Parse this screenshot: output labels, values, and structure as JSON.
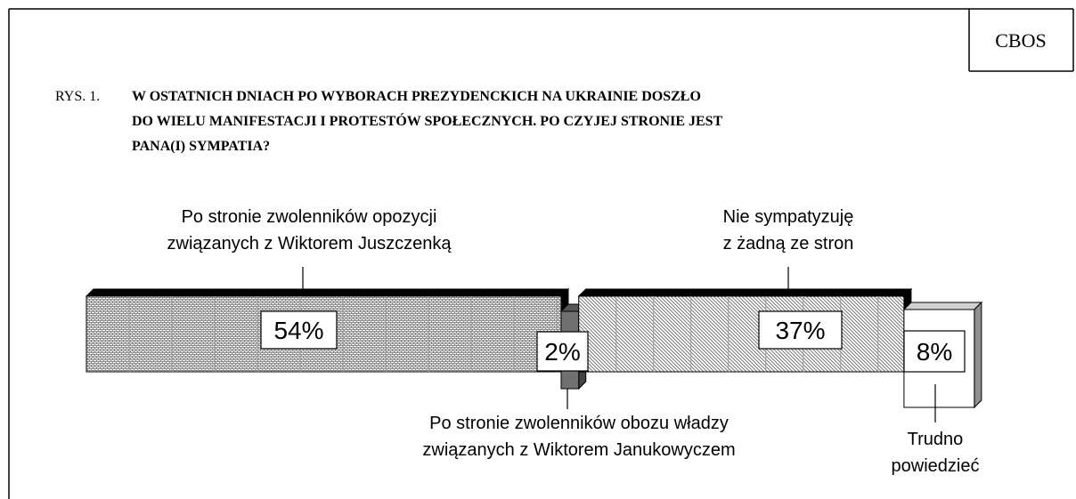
{
  "chart_data": {
    "type": "bar",
    "source": "CBOS",
    "figure_label": "RYS. 1.",
    "title": "W OSTATNICH DNIACH PO WYBORACH PREZYDENCKICH NA UKRAINIE DOSZŁO\nDO WIELU MANIFESTACJI I PROTESTÓW SPOŁECZNYCH. PO CZYJEJ STRONIE JEST\nPANA(I) SYMPATIA?",
    "categories": [
      "Po stronie zwolenników opozycji\nzwiązanych z Wiktorem Juszczenką",
      "Po stronie zwolenników obozu władzy\nzwiązanych z Wiktorem Janukowyczem",
      "Nie sympatyzuję\nz żadną ze stron",
      "Trudno\npowiedzieć"
    ],
    "values": [
      54,
      2,
      37,
      8
    ],
    "value_labels": [
      "54%",
      "2%",
      "37%",
      "8%"
    ]
  }
}
